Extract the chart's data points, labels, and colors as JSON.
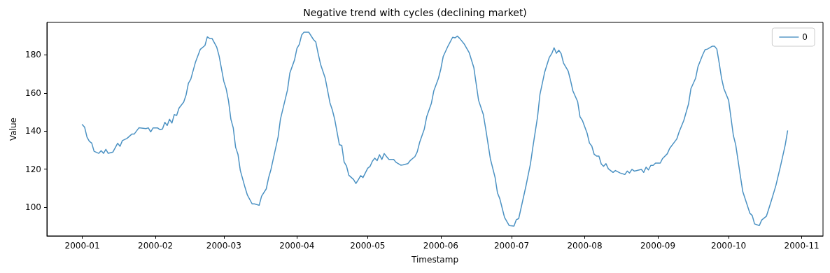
{
  "chart_data": {
    "type": "line",
    "title": "Negative trend with cycles (declining market)",
    "xlabel": "Timestamp",
    "ylabel": "Value",
    "xlim": [
      "1999-12-17",
      "2000-11-10"
    ],
    "xticks": [
      {
        "value": "2000-01-01",
        "label": "2000-01"
      },
      {
        "value": "2000-02-01",
        "label": "2000-02"
      },
      {
        "value": "2000-03-01",
        "label": "2000-03"
      },
      {
        "value": "2000-04-01",
        "label": "2000-04"
      },
      {
        "value": "2000-05-01",
        "label": "2000-05"
      },
      {
        "value": "2000-06-01",
        "label": "2000-06"
      },
      {
        "value": "2000-07-01",
        "label": "2000-07"
      },
      {
        "value": "2000-08-01",
        "label": "2000-08"
      },
      {
        "value": "2000-09-01",
        "label": "2000-09"
      },
      {
        "value": "2000-10-01",
        "label": "2000-10"
      },
      {
        "value": "2000-11-01",
        "label": "2000-11"
      }
    ],
    "ylim": [
      85,
      197
    ],
    "yticks": [
      100,
      120,
      140,
      160,
      180
    ],
    "grid": false,
    "legend": "top right",
    "marker": "none",
    "line_style": "solid",
    "x": [
      "2000-01-01",
      "2000-01-02",
      "2000-01-03",
      "2000-01-04",
      "2000-01-05",
      "2000-01-06",
      "2000-01-08",
      "2000-01-09",
      "2000-01-10",
      "2000-01-11",
      "2000-01-12",
      "2000-01-14",
      "2000-01-16",
      "2000-01-17",
      "2000-01-18",
      "2000-01-20",
      "2000-01-22",
      "2000-01-23",
      "2000-01-25",
      "2000-01-28",
      "2000-01-29",
      "2000-01-30",
      "2000-01-31",
      "2000-02-02",
      "2000-02-03",
      "2000-02-04",
      "2000-02-05",
      "2000-02-06",
      "2000-02-07",
      "2000-02-08",
      "2000-02-09",
      "2000-02-10",
      "2000-02-11",
      "2000-02-13",
      "2000-02-14",
      "2000-02-15",
      "2000-02-16",
      "2000-02-18",
      "2000-02-20",
      "2000-02-22",
      "2000-02-23",
      "2000-02-24",
      "2000-02-25",
      "2000-02-27",
      "2000-02-28",
      "2000-03-01",
      "2000-03-02",
      "2000-03-03",
      "2000-03-04",
      "2000-03-05",
      "2000-03-06",
      "2000-03-07",
      "2000-03-08",
      "2000-03-10",
      "2000-03-11",
      "2000-03-13",
      "2000-03-14",
      "2000-03-16",
      "2000-03-17",
      "2000-03-19",
      "2000-03-20",
      "2000-03-21",
      "2000-03-24",
      "2000-03-25",
      "2000-03-28",
      "2000-03-29",
      "2000-03-31",
      "2000-04-01",
      "2000-04-02",
      "2000-04-03",
      "2000-04-04",
      "2000-04-06",
      "2000-04-08",
      "2000-04-09",
      "2000-04-10",
      "2000-04-11",
      "2000-04-12",
      "2000-04-13",
      "2000-04-15",
      "2000-04-16",
      "2000-04-17",
      "2000-04-19",
      "2000-04-20",
      "2000-04-21",
      "2000-04-22",
      "2000-04-23",
      "2000-04-25",
      "2000-04-26",
      "2000-04-27",
      "2000-04-28",
      "2000-04-29",
      "2000-05-01",
      "2000-05-02",
      "2000-05-03",
      "2000-05-04",
      "2000-05-05",
      "2000-05-06",
      "2000-05-07",
      "2000-05-08",
      "2000-05-09",
      "2000-05-10",
      "2000-05-12",
      "2000-05-13",
      "2000-05-15",
      "2000-05-16",
      "2000-05-18",
      "2000-05-19",
      "2000-05-21",
      "2000-05-22",
      "2000-05-23",
      "2000-05-25",
      "2000-05-26",
      "2000-05-28",
      "2000-05-29",
      "2000-05-31",
      "2000-06-01",
      "2000-06-02",
      "2000-06-04",
      "2000-06-06",
      "2000-06-07",
      "2000-06-08",
      "2000-06-09",
      "2000-06-11",
      "2000-06-13",
      "2000-06-15",
      "2000-06-16",
      "2000-06-17",
      "2000-06-19",
      "2000-06-20",
      "2000-06-22",
      "2000-06-24",
      "2000-06-25",
      "2000-06-26",
      "2000-06-27",
      "2000-06-28",
      "2000-06-30",
      "2000-07-02",
      "2000-07-03",
      "2000-07-04",
      "2000-07-05",
      "2000-07-07",
      "2000-07-09",
      "2000-07-10",
      "2000-07-12",
      "2000-07-13",
      "2000-07-15",
      "2000-07-17",
      "2000-07-18",
      "2000-07-19",
      "2000-07-20",
      "2000-07-21",
      "2000-07-22",
      "2000-07-23",
      "2000-07-25",
      "2000-07-26",
      "2000-07-27",
      "2000-07-29",
      "2000-07-30",
      "2000-07-31",
      "2000-08-02",
      "2000-08-03",
      "2000-08-04",
      "2000-08-05",
      "2000-08-06",
      "2000-08-07",
      "2000-08-08",
      "2000-08-09",
      "2000-08-10",
      "2000-08-11",
      "2000-08-13",
      "2000-08-14",
      "2000-08-16",
      "2000-08-18",
      "2000-08-19",
      "2000-08-20",
      "2000-08-21",
      "2000-08-22",
      "2000-08-25",
      "2000-08-26",
      "2000-08-27",
      "2000-08-28",
      "2000-08-29",
      "2000-08-30",
      "2000-08-31",
      "2000-09-02",
      "2000-09-03",
      "2000-09-05",
      "2000-09-06",
      "2000-09-09",
      "2000-09-10",
      "2000-09-12",
      "2000-09-14",
      "2000-09-15",
      "2000-09-17",
      "2000-09-18",
      "2000-09-20",
      "2000-09-21",
      "2000-09-22",
      "2000-09-24",
      "2000-09-25",
      "2000-09-26",
      "2000-09-27",
      "2000-09-28",
      "2000-09-29",
      "2000-10-01",
      "2000-10-03",
      "2000-10-04",
      "2000-10-06",
      "2000-10-07",
      "2000-10-10",
      "2000-10-11",
      "2000-10-12",
      "2000-10-14",
      "2000-10-15",
      "2000-10-17",
      "2000-10-19",
      "2000-10-21",
      "2000-10-23",
      "2000-10-25",
      "2000-10-26"
    ],
    "series": [
      {
        "name": "0",
        "color": "#4c92c3",
        "values": [
          143.4,
          142,
          136.8,
          134.6,
          133.7,
          129.4,
          128.3,
          129.7,
          128.3,
          130.4,
          128.3,
          129,
          133.6,
          132,
          135,
          136.2,
          138.4,
          138.4,
          141.7,
          141.3,
          141.7,
          139.6,
          141.6,
          141.6,
          140.7,
          141.1,
          144.6,
          142.9,
          146.2,
          144.2,
          148.6,
          148.2,
          152,
          155.2,
          158.9,
          165.1,
          167.2,
          176.2,
          182.8,
          184.9,
          189.4,
          188.6,
          188.6,
          184,
          179.4,
          166.1,
          162.2,
          155.8,
          146.2,
          141.7,
          131.5,
          127.8,
          119.3,
          110.4,
          106.4,
          101.8,
          101.8,
          101.1,
          105.8,
          109.7,
          115.6,
          119.9,
          136.8,
          146.2,
          161.6,
          170.5,
          177.4,
          183.4,
          185.5,
          190.4,
          191.9,
          191.9,
          188,
          186.7,
          180.6,
          175.1,
          171.4,
          167.7,
          154.8,
          151.1,
          146.2,
          132.8,
          132.5,
          123.8,
          121.7,
          116.8,
          114.6,
          112.5,
          114.4,
          116.6,
          115.6,
          120.5,
          121.5,
          124.2,
          125.8,
          124.5,
          127.6,
          125.1,
          128.2,
          126.6,
          125.1,
          125.1,
          123.6,
          122.1,
          122.3,
          122.9,
          124.5,
          126.6,
          129.1,
          134,
          141.1,
          147.5,
          154.6,
          161,
          167.7,
          172.6,
          179.1,
          184.5,
          189.2,
          188.9,
          189.8,
          188.6,
          185.5,
          181.2,
          173.2,
          164.6,
          156.1,
          148.7,
          141.3,
          125.4,
          115.6,
          107.6,
          104.5,
          99.6,
          94.7,
          90.4,
          90.1,
          93.5,
          94.1,
          99.6,
          110.7,
          122.9,
          131.5,
          147.5,
          159.1,
          170.8,
          178.7,
          180.6,
          183.7,
          180.8,
          182.4,
          180.6,
          175.7,
          171.4,
          166.5,
          161,
          155.4,
          147.5,
          145.6,
          138.9,
          133.7,
          132.1,
          127.8,
          126.9,
          126.9,
          122.7,
          121.5,
          122.9,
          120.2,
          118.3,
          119.3,
          118,
          117.2,
          119,
          118,
          119.9,
          119,
          119.9,
          118.3,
          121.1,
          119.6,
          122,
          122,
          123.2,
          123.2,
          125.6,
          128.1,
          130.9,
          135.8,
          139.5,
          145.6,
          154.2,
          162.2,
          167.7,
          173.8,
          180,
          182.7,
          183,
          184.5,
          184.5,
          183,
          175.7,
          167.7,
          162.2,
          156.1,
          137.7,
          132.8,
          116.2,
          108.2,
          96.9,
          95.7,
          91.3,
          90.4,
          93.3,
          95.3,
          103.1,
          111.3,
          121.7,
          132.8,
          140.1
        ]
      }
    ]
  }
}
